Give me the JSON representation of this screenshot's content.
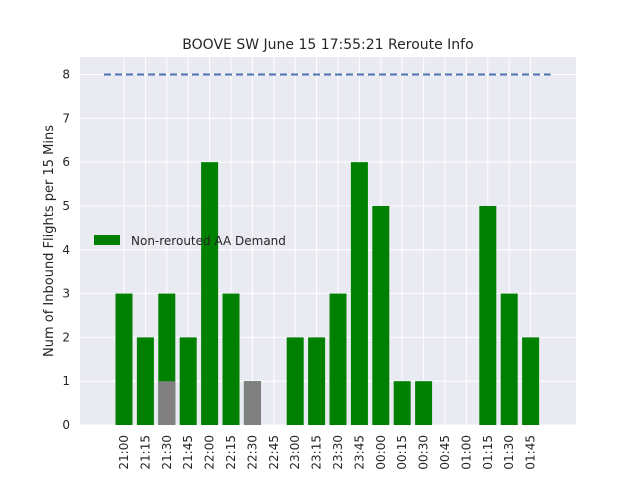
{
  "chart_data": {
    "type": "bar",
    "title": "BOOVE SW June 15 17:55:21 Reroute Info",
    "xlabel": "",
    "ylabel": "Num of Inbound Flights per 15 Mins",
    "ylim": [
      0,
      8.4
    ],
    "yticks": [
      0,
      1,
      2,
      3,
      4,
      5,
      6,
      7,
      8
    ],
    "categories": [
      "21:00",
      "21:15",
      "21:30",
      "21:45",
      "22:00",
      "22:15",
      "22:30",
      "22:45",
      "23:00",
      "23:15",
      "23:30",
      "23:45",
      "00:00",
      "00:15",
      "00:30",
      "00:45",
      "01:00",
      "01:15",
      "01:30",
      "01:45"
    ],
    "series": [
      {
        "name": "Non-rerouted AA Demand",
        "color": "#008000",
        "values": [
          3,
          2,
          3,
          2,
          6,
          3,
          1,
          0,
          2,
          2,
          3,
          6,
          5,
          1,
          1,
          0,
          0,
          5,
          3,
          2
        ]
      },
      {
        "color": "#808080",
        "values": [
          0,
          0,
          1,
          0,
          0,
          0,
          1,
          0,
          0,
          0,
          0,
          0,
          0,
          0,
          0,
          0,
          0,
          0,
          0,
          0
        ]
      }
    ],
    "reference_line": {
      "value": 8,
      "color": "#4c72b0",
      "style": "dashed"
    },
    "grid": true,
    "background": "#eaeaf2",
    "legend": {
      "placement": "center-left",
      "entries": [
        "Non-rerouted AA Demand"
      ]
    }
  }
}
